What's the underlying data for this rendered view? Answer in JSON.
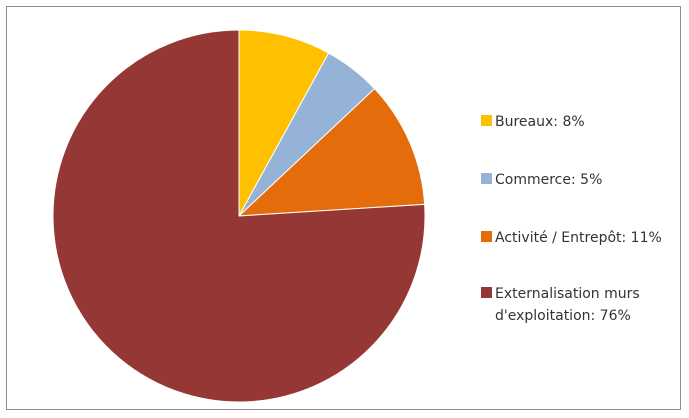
{
  "chart_data": {
    "type": "pie",
    "title": "",
    "start_angle_deg": 0,
    "direction": "clockwise",
    "legend_position": "right",
    "slices": [
      {
        "label": "Bureaux",
        "value": 8,
        "display": "Bureaux: 8%",
        "color": "#FFC000"
      },
      {
        "label": "Commerce",
        "value": 5,
        "display": "Commerce: 5%",
        "color": "#95B3D7"
      },
      {
        "label": "Activité / Entrepôt",
        "value": 11,
        "display": "Activité / Entrepôt: 11%",
        "color": "#E46C0A"
      },
      {
        "label": "Externalisation murs d'exploitation",
        "value": 76,
        "display_lines": [
          "Externalisation murs",
          "d'exploitation: 76%"
        ],
        "color": "#953735"
      }
    ]
  }
}
